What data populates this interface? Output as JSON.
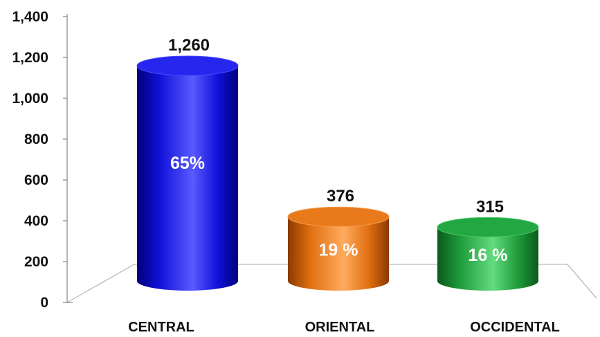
{
  "chart_data": {
    "type": "bar",
    "categories": [
      "CENTRAL",
      "ORIENTAL",
      "OCCIDENTAL"
    ],
    "values": [
      1260,
      376,
      315
    ],
    "value_labels": [
      "1,260",
      "376",
      "315"
    ],
    "percent_labels": [
      "65%",
      "19 %",
      "16 %"
    ],
    "title": "",
    "xlabel": "",
    "ylabel": "",
    "ylim": [
      0,
      1400
    ],
    "y_ticks": [
      0,
      200,
      400,
      600,
      800,
      1000,
      1200,
      1400
    ],
    "y_tick_labels": [
      "0",
      "200",
      "400",
      "600",
      "800",
      "1,000",
      "1,200",
      "1,400"
    ],
    "grid": false,
    "legend": "none",
    "style": "3d-cylinder",
    "colors": [
      "#1010d8",
      "#e06f10",
      "#1e9a3a"
    ]
  }
}
